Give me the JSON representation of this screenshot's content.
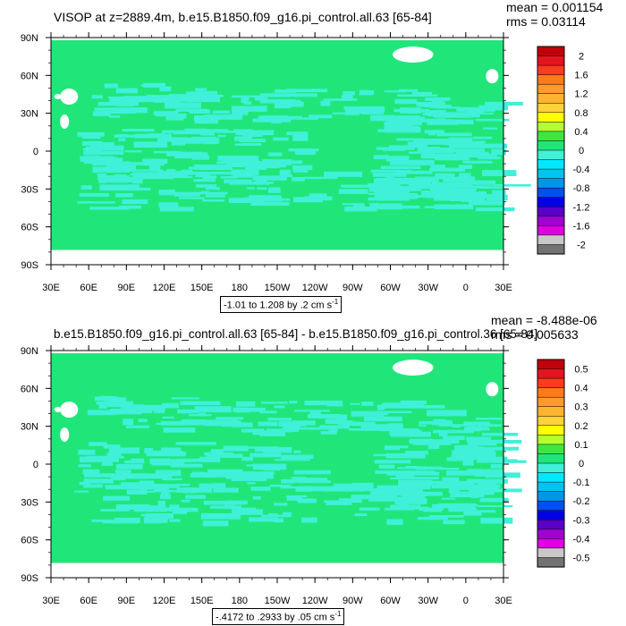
{
  "colors": {
    "ocean_fill": "#20e67a",
    "anomaly_fill": "#40f0d8",
    "land_mask": "#ffffff"
  },
  "chart_data": [
    {
      "type": "heatmap",
      "title": "VISOP at z=2889.4m, b.e15.B1850.f09_g16.pi_control.all.63 [65-84]",
      "stats": {
        "mean": "mean = 0.001154",
        "rms": "rms = 0.03114"
      },
      "x_ticks": [
        "30E",
        "60E",
        "90E",
        "120E",
        "150E",
        "180",
        "150W",
        "120W",
        "90W",
        "60W",
        "30W",
        "0",
        "30E"
      ],
      "y_ticks": [
        "90N",
        "60N",
        "30N",
        "0",
        "30S",
        "60S",
        "90S"
      ],
      "colorbar": {
        "labels": [
          "2",
          "1.6",
          "1.2",
          "0.8",
          "0.4",
          "0",
          "-0.4",
          "-0.8",
          "-1.2",
          "-1.6",
          "-2"
        ],
        "colors": [
          "#c0000a",
          "#e4141e",
          "#ff3b1e",
          "#ff7a18",
          "#ff9a2e",
          "#ffb42e",
          "#ffd23a",
          "#ffff00",
          "#b4ff32",
          "#40e640",
          "#20e67a",
          "#40f0d8",
          "#00e8ff",
          "#00c4f0",
          "#0096e8",
          "#0050f0",
          "#0000e6",
          "#5a00c8",
          "#a000d0",
          "#e000e0",
          "#c8c8c8",
          "#737373"
        ]
      },
      "range_label": "-1.01 to 1.208 by .2 cm s",
      "range_unit_exp": "-1"
    },
    {
      "type": "heatmap",
      "title": "b.e15.B1850.f09_g16.pi_control.all.63 [65-84] - b.e15.B1850.f09_g16.pi_control.36 [65-84]",
      "stats": {
        "mean": "mean = -8.488e-06",
        "rms": "rms = 0.005633"
      },
      "x_ticks": [
        "30E",
        "60E",
        "90E",
        "120E",
        "150E",
        "180",
        "150W",
        "120W",
        "90W",
        "60W",
        "30W",
        "0",
        "30E"
      ],
      "y_ticks": [
        "90N",
        "60N",
        "30N",
        "0",
        "30S",
        "60S",
        "90S"
      ],
      "colorbar": {
        "labels": [
          "0.5",
          "0.4",
          "0.3",
          "0.2",
          "0.1",
          "0",
          "-0.1",
          "-0.2",
          "-0.3",
          "-0.4",
          "-0.5"
        ],
        "colors": [
          "#c0000a",
          "#e4141e",
          "#ff3b1e",
          "#ff7a18",
          "#ff9a2e",
          "#ffb42e",
          "#ffd23a",
          "#ffff00",
          "#b4ff32",
          "#40e640",
          "#20e67a",
          "#40f0d8",
          "#00e8ff",
          "#00c4f0",
          "#0096e8",
          "#0050f0",
          "#0000e6",
          "#5a00c8",
          "#a000d0",
          "#e000e0",
          "#c8c8c8",
          "#737373"
        ]
      },
      "range_label": "-.4172 to .2933 by .05 cm s",
      "range_unit_exp": "-1"
    }
  ]
}
